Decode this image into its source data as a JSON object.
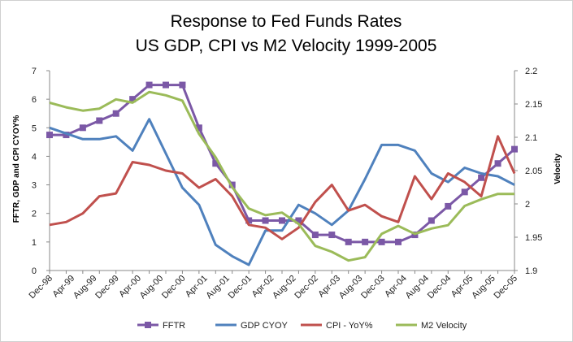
{
  "chart_data": {
    "type": "line",
    "title": [
      "Response to Fed Funds Rates",
      "US GDP, CPI vs M2 Velocity 1999-2005"
    ],
    "xlabel": "",
    "ylabel": "FFTR, GDP and CPI CYOY%",
    "y2label": "Velocity",
    "ylim": [
      0,
      7
    ],
    "y2lim": [
      1.9,
      2.2
    ],
    "yticks": [
      "0",
      "1",
      "2",
      "3",
      "4",
      "5",
      "6",
      "7"
    ],
    "y2ticks": [
      "1.9",
      "1.95",
      "2",
      "2.05",
      "2.1",
      "2.15",
      "2.2"
    ],
    "grid": false,
    "legend_position": "bottom",
    "x_labels": [
      "Dec-98",
      "Apr-99",
      "Aug-99",
      "Dec-99",
      "Apr-00",
      "Aug-00",
      "Dec-00",
      "Apr-01",
      "Aug-01",
      "Dec-01",
      "Apr-02",
      "Aug-02",
      "Dec-02",
      "Apr-03",
      "Aug-03",
      "Dec-03",
      "Apr-04",
      "Aug-04",
      "Dec-04",
      "Apr-05",
      "Aug-05",
      "Dec-05"
    ],
    "series": [
      {
        "name": "FFTR",
        "axis": "left",
        "color": "#7b58a6",
        "marker": "square",
        "values": [
          4.75,
          4.75,
          5.0,
          5.25,
          5.5,
          6.0,
          6.5,
          6.5,
          6.5,
          5.0,
          3.75,
          3.0,
          1.75,
          1.75,
          1.75,
          1.75,
          1.25,
          1.25,
          1.0,
          1.0,
          1.0,
          1.0,
          1.25,
          1.75,
          2.25,
          2.75,
          3.25,
          3.75,
          4.25
        ]
      },
      {
        "name": "GDP CYOY",
        "axis": "left",
        "color": "#4f81bd",
        "marker": "none",
        "values": [
          5.0,
          4.8,
          4.6,
          4.6,
          4.7,
          4.2,
          5.3,
          4.1,
          2.9,
          2.3,
          0.9,
          0.5,
          0.2,
          1.4,
          1.4,
          2.3,
          2.0,
          1.6,
          2.1,
          3.2,
          4.4,
          4.4,
          4.2,
          3.4,
          3.1,
          3.6,
          3.4,
          3.3,
          3.0
        ]
      },
      {
        "name": "CPI - YoY%",
        "axis": "left",
        "color": "#c0504d",
        "marker": "none",
        "values": [
          1.6,
          1.7,
          2.0,
          2.6,
          2.7,
          3.8,
          3.7,
          3.5,
          3.4,
          2.9,
          3.2,
          2.6,
          1.6,
          1.5,
          1.1,
          1.5,
          2.4,
          3.0,
          2.1,
          2.3,
          1.9,
          1.7,
          3.3,
          2.5,
          3.4,
          3.1,
          2.6,
          4.7,
          3.4
        ]
      },
      {
        "name": "M2 Velocity",
        "axis": "right",
        "color": "#9bbb59",
        "marker": "none",
        "values": [
          2.152,
          2.145,
          2.14,
          2.143,
          2.157,
          2.152,
          2.168,
          2.163,
          2.155,
          2.105,
          2.07,
          2.025,
          1.993,
          1.983,
          1.987,
          1.97,
          1.937,
          1.928,
          1.915,
          1.92,
          1.955,
          1.967,
          1.955,
          1.963,
          1.968,
          1.997,
          2.007,
          2.015,
          2.015
        ]
      }
    ]
  }
}
